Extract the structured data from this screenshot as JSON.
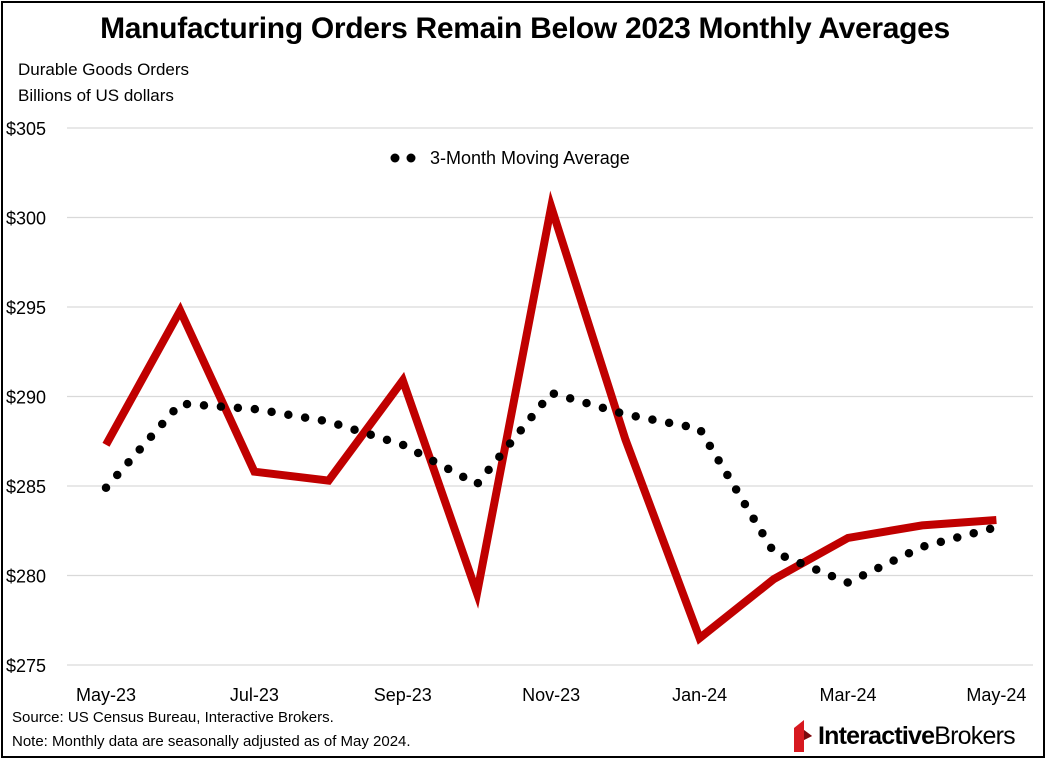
{
  "title": "Manufacturing Orders Remain Below 2023 Monthly Averages",
  "subtitle_line1": "Durable Goods Orders",
  "subtitle_line2": "Billions of US dollars",
  "footer": {
    "source": "Source: US Census Bureau, Interactive Brokers.",
    "note": "Note: Monthly data are seasonally adjusted as of May 2024."
  },
  "brand": {
    "part1": "Interactive",
    "part2": "Brokers"
  },
  "colors": {
    "series_line": "#c00000",
    "moving_average": "#000000",
    "grid": "#d9d9d9",
    "brand_red": "#d71920"
  },
  "chart_data": {
    "type": "line",
    "x": [
      "May-23",
      "Jun-23",
      "Jul-23",
      "Aug-23",
      "Sep-23",
      "Oct-23",
      "Nov-23",
      "Dec-23",
      "Jan-24",
      "Feb-24",
      "Mar-24",
      "Apr-24",
      "May-24"
    ],
    "tick_labels": [
      "May-23",
      "Jul-23",
      "Sep-23",
      "Nov-23",
      "Jan-24",
      "Mar-24",
      "May-24"
    ],
    "y_tick_labels": [
      "$275",
      "$280",
      "$285",
      "$290",
      "$295",
      "$300",
      "$305"
    ],
    "ylim": [
      275,
      305
    ],
    "grid": true,
    "legend_position": "top-center",
    "series": [
      {
        "values": [
          287.3,
          294.8,
          285.8,
          285.3,
          290.9,
          279.0,
          300.6,
          287.6,
          276.5,
          279.8,
          282.1,
          282.8,
          283.1
        ]
      },
      {
        "name": "3-Month Moving Average",
        "style": "dotted",
        "values": [
          284.9,
          289.6,
          289.3,
          288.6,
          287.3,
          285.1,
          290.2,
          289.0,
          288.2,
          281.3,
          279.6,
          281.6,
          282.7
        ]
      }
    ]
  }
}
